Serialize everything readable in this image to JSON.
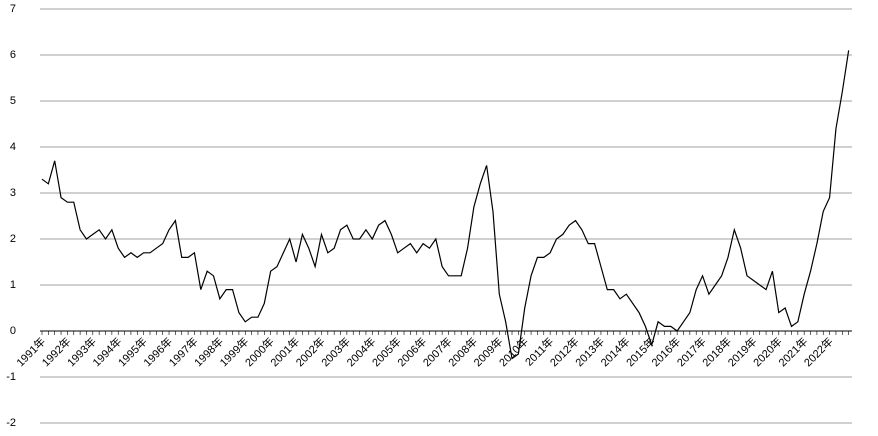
{
  "chart_data": {
    "type": "line",
    "categories": [
      "1991年",
      null,
      null,
      null,
      "1992年",
      null,
      null,
      null,
      "1993年",
      null,
      null,
      null,
      "1994年",
      null,
      null,
      null,
      "1995年",
      null,
      null,
      null,
      "1996年",
      null,
      null,
      null,
      "1997年",
      null,
      null,
      null,
      "1998年",
      null,
      null,
      null,
      "1999年",
      null,
      null,
      null,
      "2000年",
      null,
      null,
      null,
      "2001年",
      null,
      null,
      null,
      "2002年",
      null,
      null,
      null,
      "2003年",
      null,
      null,
      null,
      "2004年",
      null,
      null,
      null,
      "2005年",
      null,
      null,
      null,
      "2006年",
      null,
      null,
      null,
      "2007年",
      null,
      null,
      null,
      "2008年",
      null,
      null,
      null,
      "2009年",
      null,
      null,
      null,
      "2010年",
      null,
      null,
      null,
      "2011年",
      null,
      null,
      null,
      "2012年",
      null,
      null,
      null,
      "2013年",
      null,
      null,
      null,
      "2014年",
      null,
      null,
      null,
      "2015年",
      null,
      null,
      null,
      "2016年",
      null,
      null,
      null,
      "2017年",
      null,
      null,
      null,
      "2018年",
      null,
      null,
      null,
      "2019年",
      null,
      null,
      null,
      "2020年",
      null,
      null,
      null,
      "2021年",
      null,
      null,
      null,
      "2022年",
      null,
      null,
      null
    ],
    "series": [
      {
        "color": "#000000",
        "values": [
          3.3,
          3.2,
          3.7,
          2.9,
          2.8,
          2.8,
          2.2,
          2.0,
          2.1,
          2.2,
          2.0,
          2.2,
          1.8,
          1.6,
          1.7,
          1.6,
          1.7,
          1.7,
          1.8,
          1.9,
          2.2,
          2.4,
          1.6,
          1.6,
          1.7,
          0.9,
          1.3,
          1.2,
          0.7,
          0.9,
          0.9,
          0.4,
          0.2,
          0.3,
          0.3,
          0.6,
          1.3,
          1.4,
          1.7,
          2.0,
          1.5,
          2.1,
          1.8,
          1.4,
          2.1,
          1.7,
          1.8,
          2.2,
          2.3,
          2.0,
          2.0,
          2.2,
          2.0,
          2.3,
          2.4,
          2.1,
          1.7,
          1.8,
          1.9,
          1.7,
          1.9,
          1.8,
          2.0,
          1.4,
          1.2,
          1.2,
          1.2,
          1.8,
          2.7,
          3.2,
          3.6,
          2.6,
          0.8,
          0.2,
          -0.6,
          -0.5,
          0.5,
          1.2,
          1.6,
          1.6,
          1.7,
          2.0,
          2.1,
          2.3,
          2.4,
          2.2,
          1.9,
          1.9,
          1.4,
          0.9,
          0.9,
          0.7,
          0.8,
          0.6,
          0.4,
          0.1,
          -0.3,
          0.2,
          0.1,
          0.1,
          0.0,
          0.2,
          0.4,
          0.9,
          1.2,
          0.8,
          1.0,
          1.2,
          1.6,
          2.2,
          1.8,
          1.2,
          1.1,
          1.0,
          0.9,
          1.3,
          0.4,
          0.5,
          0.1,
          0.2,
          0.8,
          1.3,
          1.9,
          2.6,
          2.9,
          4.4,
          5.2,
          6.1
        ]
      }
    ],
    "ylim": [
      -2,
      7
    ],
    "yticks": [
      -2,
      -1,
      0,
      1,
      2,
      3,
      4,
      5,
      6,
      7
    ],
    "grid": true
  }
}
